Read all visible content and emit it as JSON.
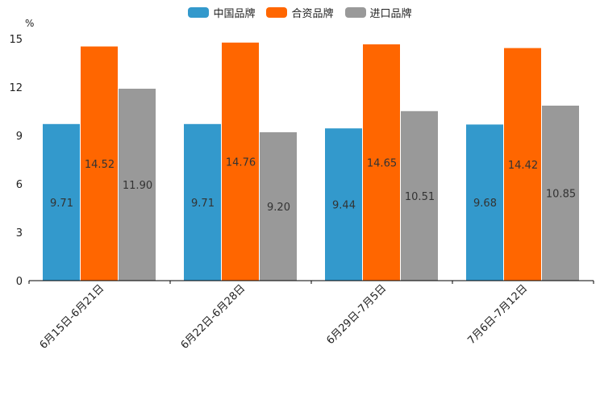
{
  "chart_data": {
    "type": "bar",
    "title": "",
    "ylabel": "%",
    "xlabel": "",
    "ylim": [
      0,
      15
    ],
    "yticks": [
      0,
      3,
      6,
      9,
      12,
      15
    ],
    "categories": [
      "6月15日-6月21日",
      "6月22日-6月28日",
      "6月29日-7月5日",
      "7月6日-7月12日"
    ],
    "series": [
      {
        "name": "中国品牌",
        "color": "#3399cc",
        "values": [
          9.71,
          9.71,
          9.44,
          9.68
        ]
      },
      {
        "name": "合资品牌",
        "color": "#ff6600",
        "values": [
          14.52,
          14.76,
          14.65,
          14.42
        ]
      },
      {
        "name": "进口品牌",
        "color": "#999999",
        "values": [
          11.9,
          9.2,
          10.51,
          10.85
        ]
      }
    ],
    "legend_position": "top-center"
  }
}
